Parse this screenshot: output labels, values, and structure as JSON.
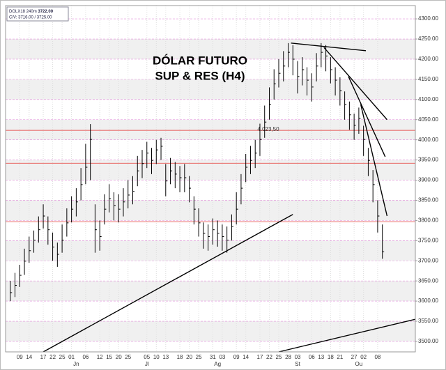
{
  "chart_data": {
    "type": "ohlc",
    "title": "DÓLAR FUTURO",
    "subtitle": "SUP & RES (H4)",
    "legend": {
      "symbol": "DOLX18",
      "timeframe": "240m",
      "last": "3722.00",
      "bid_ask": "C/V: 3716.00 / 3725.00"
    },
    "categories": [
      null,
      null,
      "09",
      null,
      "14",
      null,
      null,
      "17",
      null,
      "22",
      null,
      "25",
      null,
      "01",
      null,
      null,
      "06",
      null,
      null,
      "12",
      null,
      "15",
      null,
      "20",
      null,
      "25",
      null,
      null,
      null,
      "05",
      null,
      "10",
      null,
      "13",
      null,
      null,
      "18",
      null,
      "20",
      null,
      "25",
      null,
      null,
      "31",
      null,
      "03",
      null,
      null,
      "09",
      null,
      "14",
      null,
      null,
      "17",
      null,
      "22",
      null,
      "25",
      null,
      "28",
      null,
      "03",
      null,
      null,
      "06",
      null,
      "13",
      null,
      "18",
      null,
      "21",
      null,
      null,
      "27",
      null,
      "02",
      null,
      null,
      "08",
      null
    ],
    "months": [
      null,
      null,
      null,
      null,
      null,
      null,
      null,
      null,
      null,
      null,
      null,
      null,
      null,
      null,
      "Jn",
      null,
      null,
      null,
      null,
      null,
      null,
      null,
      null,
      null,
      null,
      null,
      null,
      null,
      null,
      "Jl",
      null,
      null,
      null,
      null,
      null,
      null,
      null,
      null,
      null,
      null,
      null,
      null,
      null,
      null,
      "Ag",
      null,
      null,
      null,
      null,
      null,
      null,
      null,
      null,
      null,
      null,
      null,
      null,
      null,
      null,
      null,
      null,
      "St",
      null,
      null,
      null,
      null,
      null,
      null,
      null,
      null,
      null,
      null,
      null,
      null,
      "Ou",
      null,
      null,
      null,
      null,
      null
    ],
    "high": [
      3650,
      3670,
      3690,
      3730,
      3760,
      3775,
      3810,
      3840,
      3810,
      3770,
      3745,
      3790,
      3830,
      3860,
      3880,
      3930,
      3990,
      4039,
      3840,
      3800,
      3865,
      3890,
      3870,
      3865,
      3880,
      3900,
      3910,
      3960,
      3975,
      3995,
      3980,
      4000,
      4005,
      3940,
      3955,
      3945,
      3935,
      3940,
      3910,
      3860,
      3830,
      3795,
      3790,
      3805,
      3800,
      3790,
      3785,
      3815,
      3870,
      3915,
      3965,
      3985,
      4000,
      4040,
      4085,
      4130,
      4175,
      4200,
      4220,
      4240,
      4235,
      4195,
      4205,
      4180,
      4165,
      4215,
      4240,
      4235,
      4205,
      4180,
      4155,
      4120,
      4095,
      4065,
      4080,
      4035,
      3980,
      3925,
      3850,
      3790
    ],
    "low": [
      3600,
      3610,
      3635,
      3665,
      3695,
      3720,
      3745,
      3780,
      3740,
      3700,
      3685,
      3720,
      3760,
      3795,
      3810,
      3850,
      3890,
      3900,
      3720,
      3725,
      3790,
      3820,
      3800,
      3795,
      3810,
      3830,
      3840,
      3885,
      3905,
      3930,
      3915,
      3940,
      3950,
      3860,
      3890,
      3880,
      3870,
      3870,
      3845,
      3790,
      3760,
      3730,
      3725,
      3740,
      3735,
      3725,
      3720,
      3750,
      3790,
      3840,
      3895,
      3915,
      3930,
      3960,
      4005,
      4050,
      4100,
      4130,
      4145,
      4180,
      4160,
      4115,
      4135,
      4110,
      4095,
      4145,
      4180,
      4170,
      4140,
      4110,
      4085,
      4050,
      4025,
      4000,
      4015,
      3960,
      3910,
      3845,
      3770,
      3705
    ],
    "close": [
      3621,
      3639,
      3664,
      3699,
      3725,
      3751,
      3777,
      3811,
      3777,
      3734,
      3716,
      3751,
      3794,
      3828,
      3846,
      3889,
      3932,
      4001,
      3777,
      3760,
      3828,
      3854,
      3837,
      3828,
      3846,
      3863,
      3872,
      3923,
      3941,
      3967,
      3949,
      3975,
      3984,
      3898,
      3923,
      3915,
      3906,
      3906,
      3880,
      3828,
      3794,
      3768,
      3760,
      3777,
      3768,
      3760,
      3751,
      3785,
      3828,
      3880,
      3932,
      3949,
      3967,
      4001,
      4044,
      4088,
      4139,
      4165,
      4183,
      4217,
      4200,
      4157,
      4174,
      4148,
      4131,
      4183,
      4217,
      4208,
      4174,
      4148,
      4122,
      4088,
      4062,
      4036,
      4053,
      4001,
      3949,
      3889,
      3811,
      3722
    ],
    "color": "#000000",
    "levels": [
      {
        "value": 4023.5,
        "label": "4.023,50"
      },
      {
        "value": 3942
      },
      {
        "value": 3797
      }
    ],
    "level_color": "#e53935",
    "trendlines": [
      {
        "x0": 7,
        "y0": 3474,
        "x1": 60,
        "y1": 3815
      },
      {
        "x0": 57,
        "y0": 3474,
        "x1": 86,
        "y1": 3555
      },
      {
        "x0": 59.6,
        "y0": 4240,
        "x1": 75.5,
        "y1": 4221
      },
      {
        "x0": 66.6,
        "y0": 4229,
        "x1": 80,
        "y1": 4050
      },
      {
        "x0": 71.8,
        "y0": 4157,
        "x1": 79.6,
        "y1": 3958
      },
      {
        "x0": 74.4,
        "y0": 4088,
        "x1": 80,
        "y1": 3811
      }
    ],
    "xlim": [
      -1,
      86
    ],
    "ylim": [
      3474,
      4333
    ],
    "yticks": [
      {
        "value": 3500,
        "label": "3500.00"
      },
      {
        "value": 3550,
        "label": "3550.00"
      },
      {
        "value": 3600,
        "label": "3600.00"
      },
      {
        "value": 3650,
        "label": "3650.00"
      },
      {
        "value": 3700,
        "label": "3700.00"
      },
      {
        "value": 3750,
        "label": "3750.00"
      },
      {
        "value": 3800,
        "label": "3800.00"
      },
      {
        "value": 3850,
        "label": "3850.00"
      },
      {
        "value": 3900,
        "label": "3900.00"
      },
      {
        "value": 3950,
        "label": "3950.00"
      },
      {
        "value": 4000,
        "label": "4000.00"
      },
      {
        "value": 4050,
        "label": "4050.00"
      },
      {
        "value": 4100,
        "label": "4100.00"
      },
      {
        "value": 4150,
        "label": "4150.00"
      },
      {
        "value": 4200,
        "label": "4200.00"
      },
      {
        "value": 4250,
        "label": "4250.00"
      },
      {
        "value": 4300,
        "label": "4300.00"
      }
    ],
    "grid": true
  }
}
